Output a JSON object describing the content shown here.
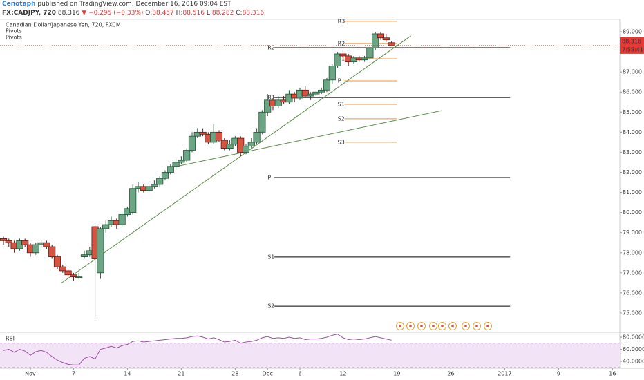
{
  "header": {
    "author": "Cenotaph",
    "published": "published on TradingView.com, December 16, 2016 09:04 EST",
    "symbol": "FX:CADJPY, 720",
    "last": "88.316",
    "change": "▼ −0.295 (−0.33%)",
    "ohlc": [
      {
        "label": "O:",
        "value": "88.457"
      },
      {
        "label": "H:",
        "value": "88.516"
      },
      {
        "label": "L:",
        "value": "88.282"
      },
      {
        "label": "C:",
        "value": "88.316"
      }
    ]
  },
  "chart_data": [
    {
      "type": "candlestick",
      "title": "Canadian Dollar/Japanese Yen, 720, FXCM",
      "indicators": [
        "Pivots",
        "Pivots"
      ],
      "x": [
        -2.5,
        -2,
        -1.5,
        -1,
        -0.5,
        0,
        0.5,
        1,
        1.5,
        2,
        2.5,
        3,
        3.5,
        4,
        4.5,
        5,
        5.5,
        6,
        6.5,
        7,
        7.5,
        8,
        8.5,
        9,
        9.5,
        10,
        10.5,
        11,
        11.5,
        12,
        12.5,
        13,
        13.5,
        14,
        14.5,
        15,
        15.5,
        16,
        16.5,
        17,
        17.5,
        18,
        18.5,
        19,
        19.5,
        20,
        20.5,
        21,
        21.5,
        22,
        22.5,
        23,
        23.5,
        24,
        24.5,
        25,
        25.5,
        26,
        26.5,
        27,
        27.5,
        28,
        28.5,
        29,
        29.5,
        30,
        30.5,
        31,
        31.5,
        32,
        32.5,
        33,
        33.5
      ],
      "open": [
        78.7,
        78.6,
        78.5,
        78.2,
        78.6,
        78.4,
        78.0,
        78.4,
        78.5,
        78.3,
        77.8,
        77.3,
        77.1,
        76.9,
        76.8,
        77.8,
        77.9,
        79.3,
        77.0,
        79.2,
        79.4,
        79.6,
        79.4,
        79.9,
        80.0,
        81.2,
        81.3,
        81.1,
        81.3,
        81.4,
        81.7,
        82.0,
        82.3,
        82.5,
        82.6,
        83.1,
        83.8,
        84.0,
        83.9,
        83.5,
        84.0,
        83.6,
        83.2,
        83.4,
        83.7,
        83.0,
        83.3,
        83.5,
        84.0,
        85.0,
        85.6,
        85.3,
        85.6,
        85.5,
        85.9,
        85.7,
        86.1,
        85.8,
        85.9,
        86.0,
        86.1,
        86.6,
        87.3,
        87.9,
        87.8,
        87.5,
        87.7,
        87.6,
        87.7,
        88.2,
        88.9,
        88.7,
        88.457
      ],
      "high": [
        78.8,
        78.7,
        78.6,
        78.7,
        78.7,
        78.5,
        78.5,
        78.6,
        78.6,
        78.4,
        77.9,
        77.4,
        77.2,
        77.0,
        77.0,
        78.1,
        78.3,
        79.4,
        79.3,
        79.6,
        79.8,
        79.7,
        80.0,
        80.3,
        81.4,
        81.5,
        81.4,
        81.4,
        81.6,
        81.8,
        82.1,
        82.4,
        82.7,
        82.8,
        83.2,
        84.0,
        84.2,
        84.2,
        84.0,
        84.4,
        84.1,
        83.7,
        83.6,
        83.8,
        83.8,
        83.4,
        83.7,
        84.2,
        85.1,
        85.9,
        85.7,
        85.8,
        85.8,
        86.1,
        86.0,
        86.2,
        86.3,
        86.0,
        86.1,
        86.2,
        86.7,
        87.4,
        88.0,
        88.1,
        87.9,
        87.8,
        87.8,
        87.8,
        88.3,
        89.0,
        89.0,
        88.9,
        88.516
      ],
      "low": [
        78.4,
        78.3,
        78.0,
        78.1,
        78.3,
        77.8,
        77.9,
        78.3,
        78.2,
        77.7,
        77.2,
        77.0,
        76.8,
        76.6,
        76.7,
        77.7,
        77.8,
        74.8,
        76.7,
        79.0,
        79.3,
        79.2,
        79.3,
        79.8,
        79.9,
        81.0,
        81.0,
        81.0,
        81.2,
        81.3,
        81.6,
        81.9,
        82.2,
        82.4,
        82.5,
        83.0,
        83.7,
        83.8,
        83.4,
        83.4,
        83.5,
        83.1,
        83.1,
        83.3,
        82.8,
        82.9,
        83.2,
        83.4,
        83.9,
        84.8,
        85.1,
        85.2,
        85.4,
        85.4,
        85.5,
        85.6,
        85.7,
        85.6,
        85.8,
        85.9,
        86.0,
        86.4,
        87.2,
        87.6,
        87.3,
        87.4,
        87.5,
        87.5,
        87.6,
        88.1,
        88.6,
        88.5,
        88.282
      ],
      "close": [
        78.6,
        78.5,
        78.2,
        78.6,
        78.4,
        78.0,
        78.4,
        78.5,
        78.3,
        77.8,
        77.3,
        77.1,
        76.9,
        76.8,
        76.8,
        77.9,
        78.1,
        77.7,
        79.2,
        79.4,
        79.6,
        79.4,
        79.9,
        80.2,
        81.2,
        81.3,
        81.1,
        81.3,
        81.4,
        81.7,
        82.0,
        82.3,
        82.5,
        82.6,
        83.1,
        83.8,
        84.0,
        83.9,
        83.5,
        84.0,
        83.6,
        83.2,
        83.4,
        83.7,
        83.0,
        83.3,
        83.5,
        84.0,
        85.0,
        85.6,
        85.3,
        85.6,
        85.5,
        85.9,
        85.7,
        86.1,
        85.8,
        85.9,
        86.0,
        86.1,
        86.6,
        87.3,
        87.9,
        87.8,
        87.5,
        87.7,
        87.6,
        87.7,
        88.2,
        88.9,
        88.7,
        88.6,
        88.316
      ],
      "up_color": "#6ba583",
      "down_color": "#d75442",
      "up_border": "#225437",
      "down_border": "#5b1a13",
      "xlim": [
        -2.82,
        54.68
      ],
      "ylim": [
        74.07,
        89.62
      ],
      "xticks": [
        {
          "value": 0,
          "label": "Nov"
        },
        {
          "value": 4,
          "label": "7"
        },
        {
          "value": 9,
          "label": "14"
        },
        {
          "value": 14,
          "label": "21"
        },
        {
          "value": 19,
          "label": "28"
        },
        {
          "value": 22,
          "label": "Dec"
        },
        {
          "value": 25,
          "label": "6"
        },
        {
          "value": 29,
          "label": "12"
        },
        {
          "value": 34,
          "label": "19"
        },
        {
          "value": 39,
          "label": "26"
        },
        {
          "value": 44,
          "label": "2017"
        },
        {
          "value": 49,
          "label": "9"
        },
        {
          "value": 54,
          "label": "16"
        }
      ],
      "yticks": [
        {
          "value": 75,
          "label": "75.000"
        },
        {
          "value": 76,
          "label": "76.000"
        },
        {
          "value": 77,
          "label": "77.000"
        },
        {
          "value": 78,
          "label": "78.000"
        },
        {
          "value": 79,
          "label": "79.000"
        },
        {
          "value": 80,
          "label": "80.000"
        },
        {
          "value": 81,
          "label": "81.000"
        },
        {
          "value": 82,
          "label": "82.000"
        },
        {
          "value": 83,
          "label": "83.000"
        },
        {
          "value": 84,
          "label": "84.000"
        },
        {
          "value": 85,
          "label": "85.000"
        },
        {
          "value": 86,
          "label": "86.000"
        },
        {
          "value": 87,
          "label": "87.000"
        },
        {
          "value": 88,
          "label": "88.000"
        },
        {
          "value": 89,
          "label": "89.000"
        }
      ],
      "pivots": [
        {
          "color": "#000000",
          "start": 22,
          "end": 44.5,
          "levels": [
            {
              "name": "R2",
              "value": 88.21
            },
            {
              "name": "R1",
              "value": 85.73
            },
            {
              "name": "P",
              "value": 81.74
            },
            {
              "name": "S1",
              "value": 77.79
            },
            {
              "name": "S2",
              "value": 75.34
            }
          ]
        },
        {
          "color": "#e8943a",
          "start": 28.5,
          "end": 34,
          "levels": [
            {
              "name": "R3",
              "value": 89.52
            },
            {
              "name": "R2",
              "value": 88.42
            },
            {
              "name": "R1",
              "value": 87.66
            },
            {
              "name": "P",
              "value": 86.56
            },
            {
              "name": "S1",
              "value": 85.39
            },
            {
              "name": "S2",
              "value": 84.67
            },
            {
              "name": "S3",
              "value": 83.5
            }
          ]
        }
      ],
      "trendlines": [
        {
          "color": "#5d8a4a",
          "x": [
            2.9,
            35.3
          ],
          "y": [
            76.5,
            88.8
          ]
        },
        {
          "color": "#5d8a4a",
          "x": [
            12.9,
            38.2
          ],
          "y": [
            82.22,
            85.08
          ]
        }
      ],
      "last_price_color": "#e53935",
      "countdown": "7:55:41"
    },
    {
      "type": "line",
      "title": "RSI",
      "color": "#9c4fa3",
      "band": [
        30,
        70
      ],
      "band_color": "#f3e3f7",
      "values": [
        58,
        60,
        55,
        60,
        57,
        50,
        56,
        58,
        55,
        48,
        42,
        38,
        35,
        34,
        34,
        45,
        48,
        44,
        60,
        62,
        65,
        62,
        66,
        68,
        73,
        74,
        72,
        73,
        74,
        75,
        76,
        77,
        78,
        78,
        79,
        81,
        82,
        80,
        77,
        79,
        76,
        72,
        73,
        75,
        70,
        72,
        73,
        75,
        79,
        81,
        78,
        79,
        78,
        80,
        78,
        79,
        76,
        77,
        77,
        78,
        80,
        83,
        85,
        79,
        76,
        77,
        76,
        77,
        79,
        81,
        79,
        77,
        75
      ],
      "ylim": [
        29.7,
        86.9
      ],
      "yticks": [
        {
          "value": 80,
          "label": "80.0000"
        },
        {
          "value": 60,
          "label": "60.0000"
        },
        {
          "value": 40,
          "label": "40.0000"
        }
      ]
    }
  ]
}
